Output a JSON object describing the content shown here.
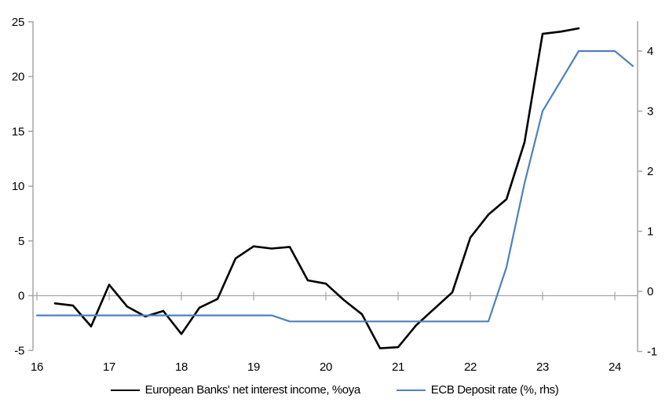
{
  "chart_data": {
    "type": "line",
    "title": "",
    "xlabel": "",
    "ylabel_left": "",
    "ylabel_right": "",
    "x_axis": {
      "min": 16,
      "max": 24.3,
      "ticks": [
        16,
        17,
        18,
        19,
        20,
        21,
        22,
        23,
        24
      ]
    },
    "left_axis": {
      "min": -5,
      "max": 25,
      "ticks": [
        -5,
        0,
        5,
        10,
        15,
        20,
        25
      ]
    },
    "right_axis": {
      "min": -1,
      "max": 4.45,
      "ticks": [
        -1,
        0,
        1,
        2,
        3,
        4
      ]
    },
    "grid": "zero-line-only",
    "legend_position": "bottom-center",
    "colors": {
      "axis_gray": "#a6a6a6",
      "zero_line": "#a6a6a6",
      "series_nii": "#000000",
      "series_ecb": "#4f81bd"
    },
    "series": [
      {
        "name": "European Banks' net interest income, %oya",
        "axis": "left",
        "color": "#000000",
        "stroke_width": 2.6,
        "x": [
          16.25,
          16.5,
          16.75,
          17.0,
          17.25,
          17.5,
          17.75,
          18.0,
          18.25,
          18.5,
          18.75,
          19.0,
          19.25,
          19.5,
          19.75,
          20.0,
          20.25,
          20.5,
          20.75,
          21.0,
          21.25,
          21.5,
          21.75,
          22.0,
          22.25,
          22.5,
          22.75,
          23.0,
          23.25,
          23.5
        ],
        "y": [
          -0.7,
          -0.9,
          -2.8,
          1.0,
          -1.0,
          -1.9,
          -1.4,
          -3.5,
          -1.1,
          -0.3,
          3.4,
          4.5,
          4.3,
          4.45,
          1.4,
          1.1,
          -0.4,
          -1.7,
          -4.8,
          -4.7,
          -2.7,
          -1.2,
          0.3,
          5.3,
          7.4,
          8.8,
          14.0,
          23.9,
          24.1,
          24.4
        ]
      },
      {
        "name": "ECB Deposit rate (%, rhs)",
        "axis": "right",
        "color": "#4f81bd",
        "stroke_width": 2.2,
        "x": [
          16.0,
          16.25,
          16.5,
          16.75,
          17.0,
          17.25,
          17.5,
          17.75,
          18.0,
          18.25,
          18.5,
          18.75,
          19.0,
          19.25,
          19.5,
          19.75,
          20.0,
          20.25,
          20.5,
          20.75,
          21.0,
          21.25,
          21.5,
          21.75,
          22.0,
          22.25,
          22.5,
          22.75,
          23.0,
          23.25,
          23.5,
          23.75,
          24.0,
          24.25
        ],
        "y": [
          -0.4,
          -0.4,
          -0.4,
          -0.4,
          -0.4,
          -0.4,
          -0.4,
          -0.4,
          -0.4,
          -0.4,
          -0.4,
          -0.4,
          -0.4,
          -0.4,
          -0.5,
          -0.5,
          -0.5,
          -0.5,
          -0.5,
          -0.5,
          -0.5,
          -0.5,
          -0.5,
          -0.5,
          -0.5,
          -0.5,
          0.4,
          1.8,
          3.0,
          3.5,
          4.0,
          4.0,
          4.0,
          3.75
        ]
      }
    ]
  },
  "legend": {
    "item1": "European Banks' net interest income, %oya",
    "item2": "ECB Deposit rate (%, rhs)"
  }
}
